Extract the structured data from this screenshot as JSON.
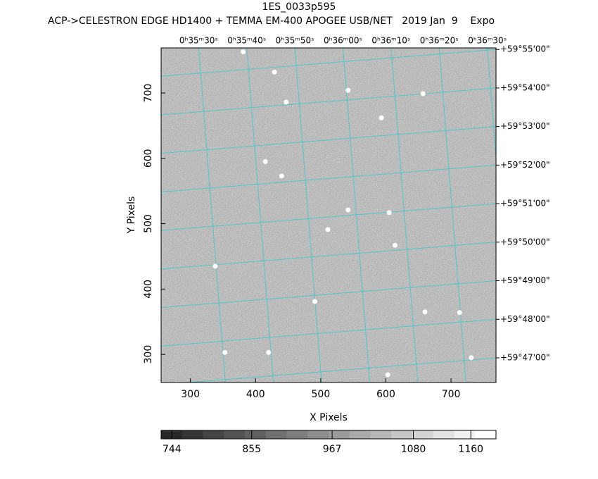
{
  "chart_data": {
    "type": "image",
    "title": "1ES_0033p595",
    "subtitle": "ACP->CELESTRON EDGE HD1400 + TEMMA EM-400 APOGEE USB/NET   2019 Jan  9    Expo",
    "xlabel": "X Pixels",
    "ylabel": "Y Pixels",
    "xlim": [
      255,
      769
    ],
    "ylim": [
      257,
      769
    ],
    "xticks": [
      300,
      400,
      500,
      600,
      700
    ],
    "yticks": [
      300,
      400,
      500,
      600,
      700
    ],
    "x2lim": [
      2122.2,
      2191.8
    ],
    "x2ticks": [
      {
        "value": 2130,
        "label": "0ʰ35ᵐ30ˢ"
      },
      {
        "value": 2140,
        "label": "0ʰ35ᵐ40ˢ"
      },
      {
        "value": 2150,
        "label": "0ʰ35ᵐ50ˢ"
      },
      {
        "value": 2160,
        "label": "0ʰ36ᵐ00ˢ"
      },
      {
        "value": 2170,
        "label": "0ʰ36ᵐ10ˢ"
      },
      {
        "value": 2180,
        "label": "0ʰ36ᵐ20ˢ"
      },
      {
        "value": 2190,
        "label": "0ʰ36ᵐ30ˢ"
      }
    ],
    "y2lim": [
      46.36,
      55.04
    ],
    "y2ticks": [
      {
        "value": 47,
        "label": "+59°47'00\""
      },
      {
        "value": 48,
        "label": "+59°48'00\""
      },
      {
        "value": 49,
        "label": "+59°49'00\""
      },
      {
        "value": 50,
        "label": "+59°50'00\""
      },
      {
        "value": 51,
        "label": "+59°51'00\""
      },
      {
        "value": 52,
        "label": "+59°52'00\""
      },
      {
        "value": 53,
        "label": "+59°53'00\""
      },
      {
        "value": 54,
        "label": "+59°54'00\""
      },
      {
        "value": 55,
        "label": "+59°55'00\""
      }
    ],
    "grid_color": "#3fc8c8",
    "sources": {
      "x": [
        381,
        447,
        415,
        542,
        605,
        511,
        614,
        338,
        420,
        429,
        440,
        593,
        657,
        660,
        713,
        491,
        353,
        603,
        731,
        542
      ],
      "y": [
        763,
        686,
        595,
        521,
        517,
        491,
        467,
        435,
        303,
        732,
        573,
        662,
        699,
        365,
        364,
        381,
        303,
        269,
        295,
        704
      ]
    },
    "clim": [
      729,
      1195
    ],
    "cticks": [
      744,
      855,
      967,
      1080,
      1160
    ]
  }
}
